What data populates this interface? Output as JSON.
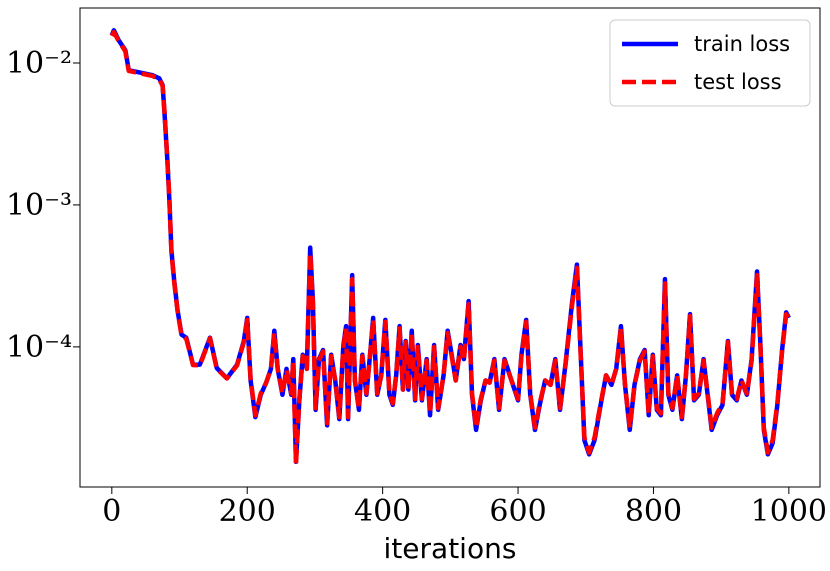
{
  "chart_data": {
    "type": "line",
    "xlabel": "iterations",
    "yscale": "log",
    "legend": "upper right",
    "xlim": [
      -47,
      1046
    ],
    "ylim": [
      1.03e-05,
      0.0244
    ],
    "xticks": [
      0,
      200,
      400,
      600,
      800,
      1000
    ],
    "yticks": [
      {
        "value": 0.0001,
        "label": "10⁻⁴"
      },
      {
        "value": 0.001,
        "label": "10⁻³"
      },
      {
        "value": 0.01,
        "label": "10⁻²"
      }
    ],
    "x": [
      0,
      3,
      10,
      20,
      25,
      40,
      60,
      70,
      75,
      78,
      82,
      85,
      88,
      92,
      97,
      103,
      110,
      120,
      130,
      145,
      155,
      170,
      185,
      195,
      200,
      205,
      212,
      220,
      228,
      235,
      240,
      245,
      252,
      258,
      265,
      268,
      272,
      277,
      282,
      288,
      293,
      297,
      301,
      306,
      312,
      318,
      324,
      330,
      336,
      342,
      346,
      349,
      355,
      359,
      365,
      370,
      376,
      382,
      386,
      392,
      398,
      404,
      410,
      415,
      420,
      425,
      430,
      434,
      438,
      443,
      448,
      452,
      458,
      465,
      470,
      476,
      482,
      490,
      496,
      502,
      508,
      515,
      520,
      527,
      532,
      538,
      545,
      552,
      558,
      565,
      572,
      580,
      600,
      605,
      612,
      618,
      625,
      632,
      640,
      648,
      655,
      662,
      670,
      680,
      687,
      692,
      698,
      705,
      713,
      722,
      730,
      738,
      745,
      752,
      758,
      765,
      772,
      780,
      787,
      793,
      799,
      805,
      811,
      817,
      822,
      828,
      835,
      842,
      848,
      854,
      860,
      867,
      874,
      880,
      886,
      894,
      902,
      910,
      916,
      923,
      930,
      938,
      945,
      953,
      958,
      963,
      969,
      976,
      983,
      990,
      996,
      1000
    ],
    "series": [
      {
        "name": "train loss",
        "color": "#0000ff",
        "dash": "solid",
        "values": [
          0.0157,
          0.017,
          0.0145,
          0.0123,
          0.0089,
          0.0086,
          0.0082,
          0.0078,
          0.007,
          0.0043,
          0.00207,
          0.00108,
          0.00048,
          0.000296,
          0.000182,
          0.000122,
          0.000116,
          7.47e-05,
          7.5e-05,
          0.000116,
          7.1e-05,
          6e-05,
          7.5e-05,
          0.00011,
          0.00016,
          5.8e-05,
          3.2e-05,
          4.6e-05,
          5.6e-05,
          7e-05,
          0.00013,
          7e-05,
          4.6e-05,
          7e-05,
          4.6e-05,
          8.2e-05,
          1.55e-05,
          4.2e-05,
          8.8e-05,
          7e-05,
          0.0005,
          0.00021,
          3.6e-05,
          8.2e-05,
          9.5e-05,
          2.8e-05,
          8.8e-05,
          5.8e-05,
          3.1e-05,
          0.000103,
          0.00014,
          3.1e-05,
          0.00032,
          5.8e-05,
          3.6e-05,
          8.8e-05,
          4.6e-05,
          9.5e-05,
          0.00016,
          4.6e-05,
          6.3e-05,
          0.000155,
          4.6e-05,
          3.9e-05,
          6.3e-05,
          0.00014,
          5e-05,
          0.00011,
          5e-05,
          0.00013,
          4.2e-05,
          0.000103,
          4.2e-05,
          8.2e-05,
          3.3e-05,
          0.000103,
          3.6e-05,
          6.3e-05,
          0.00013,
          8.8e-05,
          5.8e-05,
          0.000103,
          8.2e-05,
          0.00021,
          4.6e-05,
          2.6e-05,
          4.2e-05,
          5.8e-05,
          5.6e-05,
          8.2e-05,
          3.6e-05,
          8.2e-05,
          4.2e-05,
          8.8e-05,
          0.000155,
          4.6e-05,
          2.6e-05,
          3.9e-05,
          5.8e-05,
          5.4e-05,
          8.2e-05,
          3.6e-05,
          7.5e-05,
          0.00021,
          0.00038,
          0.000103,
          2.2e-05,
          1.75e-05,
          2.2e-05,
          3.9e-05,
          6.3e-05,
          5.4e-05,
          7e-05,
          0.00014,
          5.4e-05,
          2.6e-05,
          5.4e-05,
          8.2e-05,
          9.5e-05,
          3.3e-05,
          8.8e-05,
          3.6e-05,
          3.3e-05,
          0.0003,
          4.6e-05,
          3.6e-05,
          6.3e-05,
          3.1e-05,
          6.3e-05,
          0.00017,
          4.2e-05,
          4.6e-05,
          8.2e-05,
          4.6e-05,
          2.6e-05,
          3.3e-05,
          3.9e-05,
          0.00011,
          4.6e-05,
          4.2e-05,
          5.8e-05,
          4.6e-05,
          8.2e-05,
          0.00034,
          0.000103,
          2.6e-05,
          1.75e-05,
          2.1e-05,
          3.9e-05,
          9.5e-05,
          0.000175,
          0.00016
        ]
      },
      {
        "name": "test loss",
        "color": "#ff0000",
        "dash": "dashed",
        "values": [
          0.0155,
          0.0165,
          0.0143,
          0.0121,
          0.0088,
          0.0085,
          0.0081,
          0.0077,
          0.0069,
          0.0044,
          0.0021,
          0.0011,
          0.00047,
          0.00029,
          0.00018,
          0.00012,
          0.000114,
          7.45e-05,
          7.4e-05,
          0.000115,
          7e-05,
          6e-05,
          7.4e-05,
          0.000108,
          0.000155,
          5.9e-05,
          3.3e-05,
          4.7e-05,
          5.6e-05,
          7e-05,
          0.000125,
          7e-05,
          4.7e-05,
          6.9e-05,
          4.7e-05,
          8e-05,
          1.5e-05,
          4.3e-05,
          8.6e-05,
          7e-05,
          0.00046,
          0.0002,
          3.7e-05,
          8e-05,
          9.3e-05,
          2.9e-05,
          8.6e-05,
          5.8e-05,
          3.2e-05,
          0.0001,
          0.000135,
          3.2e-05,
          0.0003,
          5.8e-05,
          3.7e-05,
          8.6e-05,
          4.7e-05,
          9.3e-05,
          0.000155,
          4.7e-05,
          6.3e-05,
          0.00015,
          4.7e-05,
          4e-05,
          6.3e-05,
          0.000135,
          5e-05,
          0.000108,
          5e-05,
          0.000125,
          4.3e-05,
          0.0001,
          4.3e-05,
          8e-05,
          3.4e-05,
          0.0001,
          3.7e-05,
          6.3e-05,
          0.000125,
          8.6e-05,
          5.8e-05,
          0.0001,
          8e-05,
          0.0002,
          4.7e-05,
          2.7e-05,
          4.3e-05,
          5.8e-05,
          5.6e-05,
          8e-05,
          3.7e-05,
          8e-05,
          4.3e-05,
          8.6e-05,
          0.00015,
          4.7e-05,
          2.7e-05,
          4e-05,
          5.8e-05,
          5.4e-05,
          8e-05,
          3.7e-05,
          7.4e-05,
          0.0002,
          0.00036,
          0.0001,
          2.3e-05,
          1.8e-05,
          2.3e-05,
          4e-05,
          6.3e-05,
          5.4e-05,
          7e-05,
          0.000135,
          5.4e-05,
          2.7e-05,
          5.4e-05,
          8e-05,
          9.3e-05,
          3.4e-05,
          8.6e-05,
          3.7e-05,
          3.4e-05,
          0.00028,
          4.7e-05,
          3.7e-05,
          6.3e-05,
          3.2e-05,
          6.3e-05,
          0.000165,
          4.3e-05,
          4.7e-05,
          8e-05,
          4.7e-05,
          2.7e-05,
          3.4e-05,
          4e-05,
          0.000108,
          4.7e-05,
          4.3e-05,
          5.8e-05,
          4.7e-05,
          8e-05,
          0.00032,
          0.0001,
          2.7e-05,
          1.8e-05,
          2.2e-05,
          4e-05,
          9.3e-05,
          0.00017,
          0.000158
        ]
      }
    ]
  }
}
